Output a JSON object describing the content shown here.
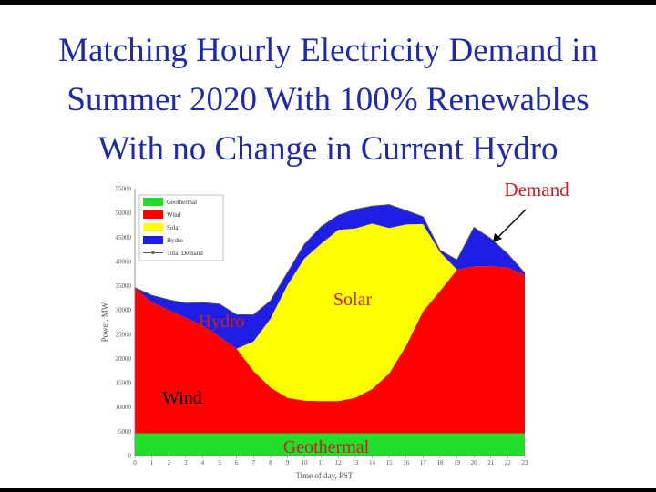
{
  "slide": {
    "title_lines": [
      "Matching Hourly Electricity Demand in",
      "Summer 2020 With 100% Renewables",
      "With no Change in Current Hydro"
    ]
  },
  "chart_data": {
    "type": "area",
    "stacked": true,
    "title": "",
    "xlabel": "Time of day, PST",
    "ylabel": "Power, MW",
    "x": [
      0,
      1,
      2,
      3,
      4,
      5,
      6,
      7,
      8,
      9,
      10,
      11,
      12,
      13,
      14,
      15,
      16,
      17,
      18,
      19,
      20,
      21,
      22,
      23
    ],
    "xlim": [
      0,
      23
    ],
    "ylim": [
      0,
      55000
    ],
    "y_ticks": [
      0,
      5000,
      10000,
      15000,
      20000,
      25000,
      30000,
      35000,
      40000,
      45000,
      50000,
      55000
    ],
    "series": [
      {
        "name": "Geothermal",
        "color": "#22dd2a",
        "values": [
          4600,
          4600,
          4600,
          4600,
          4600,
          4600,
          4600,
          4600,
          4600,
          4600,
          4600,
          4600,
          4600,
          4600,
          4600,
          4600,
          4600,
          4600,
          4600,
          4600,
          4600,
          4600,
          4600,
          4600
        ]
      },
      {
        "name": "Wind",
        "color": "#ff0000",
        "values": [
          30000,
          27000,
          25400,
          23800,
          22200,
          19900,
          17400,
          12800,
          9400,
          7300,
          6700,
          6600,
          6600,
          7300,
          9100,
          12300,
          18000,
          25100,
          29300,
          33700,
          34400,
          34400,
          34100,
          32600
        ]
      },
      {
        "name": "Solar",
        "color": "#ffff00",
        "values": [
          0,
          0,
          0,
          0,
          0,
          0,
          0,
          6100,
          14200,
          23200,
          29300,
          32500,
          35300,
          34900,
          34100,
          30000,
          25000,
          18000,
          8000,
          0,
          0,
          0,
          0,
          0
        ]
      },
      {
        "name": "Hydro",
        "color": "#1e1ee6",
        "values": [
          0,
          1400,
          2100,
          3000,
          4700,
          6700,
          7000,
          5500,
          3700,
          2600,
          2900,
          3500,
          3000,
          3900,
          3600,
          4800,
          2900,
          1500,
          400,
          2000,
          8000,
          5700,
          2800,
          400
        ]
      }
    ],
    "total_demand": {
      "name": "Total Demand",
      "values": [
        34600,
        33000,
        32100,
        31400,
        31500,
        31200,
        29000,
        29000,
        31900,
        37700,
        43500,
        47200,
        49500,
        50700,
        51400,
        51700,
        50500,
        49200,
        42300,
        40300,
        47000,
        44700,
        41500,
        37600
      ]
    },
    "legend_position": "top-left",
    "grid": false,
    "annotations": [
      {
        "text": "Geothermal",
        "color": "#c8202a"
      },
      {
        "text": "Wind",
        "color": "#000000"
      },
      {
        "text": "Hydro",
        "color": "#c8202a"
      },
      {
        "text": "Solar",
        "color": "#c8202a"
      },
      {
        "text": "Demand",
        "color": "#c8202a",
        "arrow": true
      }
    ]
  }
}
